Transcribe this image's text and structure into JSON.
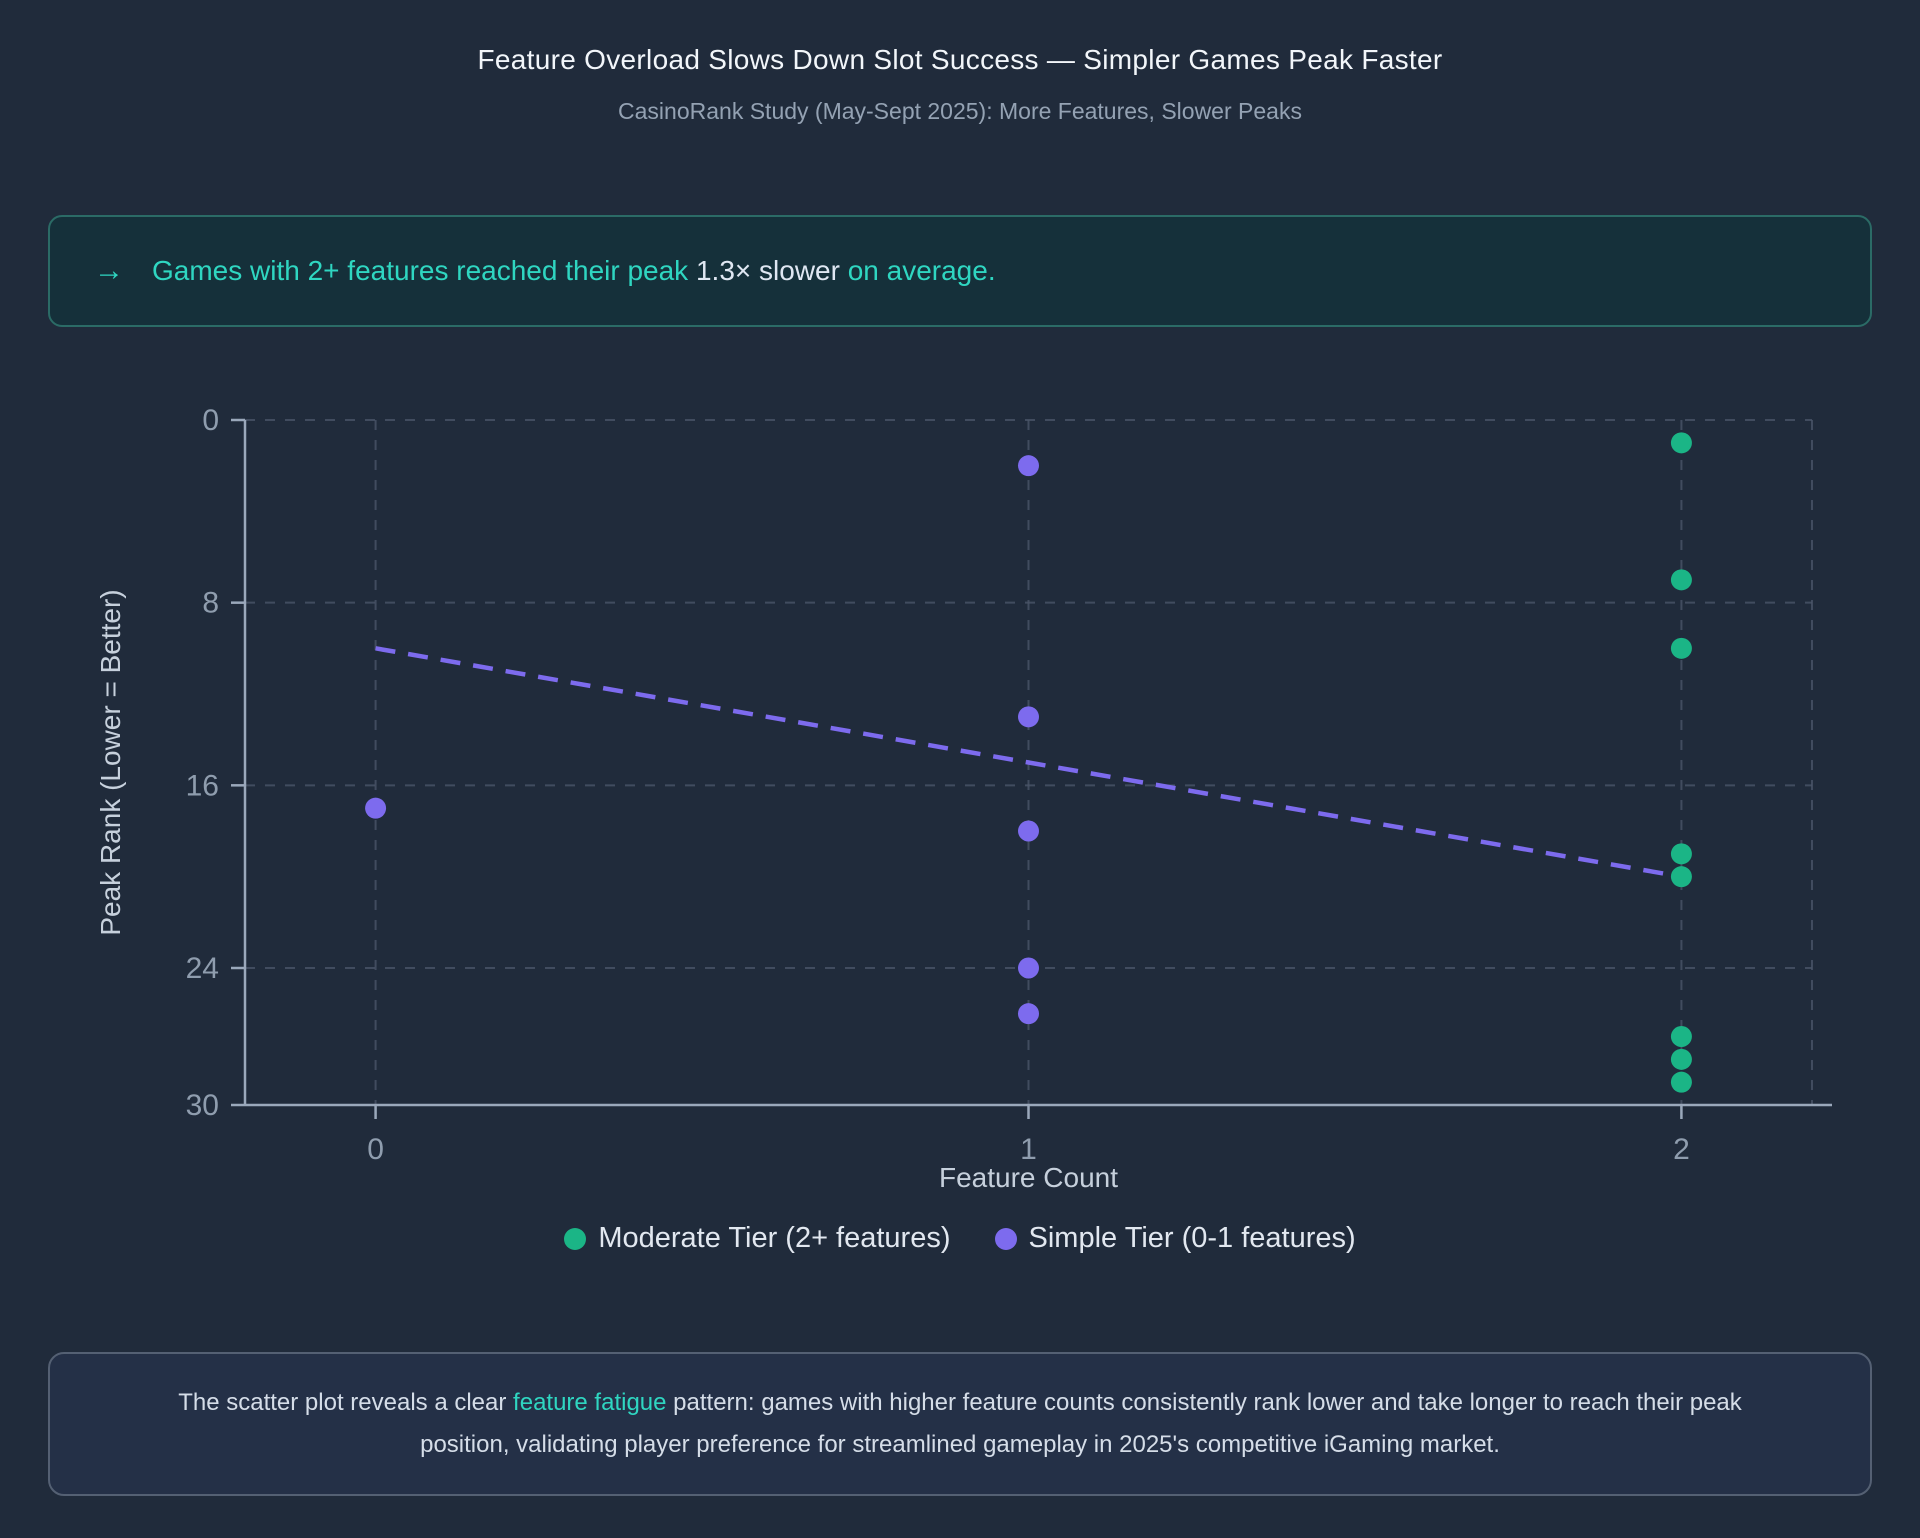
{
  "colors": {
    "page_bg": "#202b3b",
    "teal_accent": "#2fd6c1",
    "green_series": "#1bb586",
    "purple_series": "#7d6bee",
    "callout_bg": "#15303a",
    "callout_border": "#2b6b66"
  },
  "header": {
    "title": "Feature Overload Slows Down Slot Success — Simpler Games Peak Faster",
    "subtitle": "CasinoRank Study (May-Sept 2025): More Features, Slower Peaks"
  },
  "callout": {
    "arrow_icon": "→",
    "text_before": "Games with 2+ features reached their peak ",
    "highlight": "1.3× slower",
    "text_after": " on average."
  },
  "chart_data": {
    "type": "scatter",
    "xlabel": "Feature Count",
    "ylabel": "Peak Rank (Lower = Better)",
    "xlim": [
      -0.2,
      2.2
    ],
    "ylim": [
      0,
      30
    ],
    "y_axis_inverted_note": "rank 0 at top, 30 at bottom (lower = better)",
    "xticks": [
      0,
      1,
      2
    ],
    "yticks": [
      0,
      8,
      16,
      24,
      30
    ],
    "grid": true,
    "series": [
      {
        "name": "Moderate Tier (2+ features)",
        "color": "#1bb586",
        "points": [
          [
            2,
            1
          ],
          [
            2,
            7
          ],
          [
            2,
            10
          ],
          [
            2,
            19
          ],
          [
            2,
            20
          ],
          [
            2,
            27
          ],
          [
            2,
            28
          ],
          [
            2,
            29
          ]
        ]
      },
      {
        "name": "Simple Tier (0-1 features)",
        "color": "#7d6bee",
        "points": [
          [
            0,
            17
          ],
          [
            1,
            2
          ],
          [
            1,
            13
          ],
          [
            1,
            18
          ],
          [
            1,
            24
          ],
          [
            1,
            26
          ]
        ]
      }
    ],
    "trendline": {
      "style": "dashed",
      "color": "#7d6bee",
      "from": [
        0,
        10
      ],
      "to": [
        2,
        20
      ]
    },
    "legend_position": "bottom"
  },
  "footer": {
    "text_before": "The scatter plot reveals a clear ",
    "highlight": "feature fatigue",
    "text_after": " pattern: games with higher feature counts consistently rank lower and take longer to reach their peak position, validating player preference for streamlined gameplay in 2025's competitive iGaming market."
  }
}
